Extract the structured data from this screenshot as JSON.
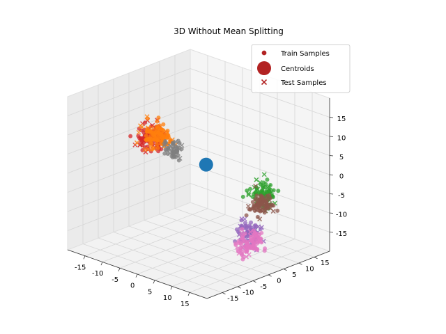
{
  "chart_data": {
    "type": "scatter",
    "title": "3D Without Mean Splitting",
    "xlabel": "",
    "ylabel": "",
    "zlabel": "",
    "xlim": [
      -20,
      20
    ],
    "ylim": [
      -20,
      20
    ],
    "zlim": [
      -20,
      20
    ],
    "grid": true,
    "x_ticks": [
      "-15",
      "-10",
      "-5",
      "0",
      "5",
      "10",
      "15"
    ],
    "y_ticks": [
      "-15",
      "-10",
      "-5",
      "0",
      "5",
      "10",
      "15"
    ],
    "z_ticks": [
      "-15",
      "-10",
      "-5",
      "0",
      "5",
      "10",
      "15"
    ],
    "legend": {
      "placement": "top-right",
      "entries": [
        {
          "label": "Train Samples",
          "marker": "circle",
          "color": "#b22222"
        },
        {
          "label": "Centroids",
          "marker": "large-circle",
          "color": "#b22222"
        },
        {
          "label": "Test Samples",
          "marker": "x",
          "color": "#b22222"
        }
      ]
    },
    "clusters": [
      {
        "color": "#d62728",
        "center": [
          0,
          -15,
          14
        ],
        "spread": 2.5,
        "train": 90,
        "test": 22
      },
      {
        "color": "#ff7f0e",
        "center": [
          -12,
          0,
          6
        ],
        "spread": 2.5,
        "train": 90,
        "test": 22
      },
      {
        "color": "#7f7f7f",
        "center": [
          -9,
          2,
          3
        ],
        "spread": 2.0,
        "train": 40,
        "test": 12
      },
      {
        "color": "#2ca02c",
        "center": [
          5,
          15,
          -8
        ],
        "spread": 2.5,
        "train": 70,
        "test": 18
      },
      {
        "color": "#8c564b",
        "center": [
          5,
          15,
          -11
        ],
        "spread": 2.0,
        "train": 70,
        "test": 18
      },
      {
        "color": "#9467bd",
        "center": [
          13,
          2,
          -12
        ],
        "spread": 2.5,
        "train": 60,
        "test": 15
      },
      {
        "color": "#e377c2",
        "center": [
          14,
          1,
          -14
        ],
        "spread": 2.5,
        "train": 80,
        "test": 20
      }
    ],
    "centroids": [
      {
        "color": "#1f77b4",
        "position": [
          -4,
          7,
          -1
        ]
      }
    ]
  }
}
